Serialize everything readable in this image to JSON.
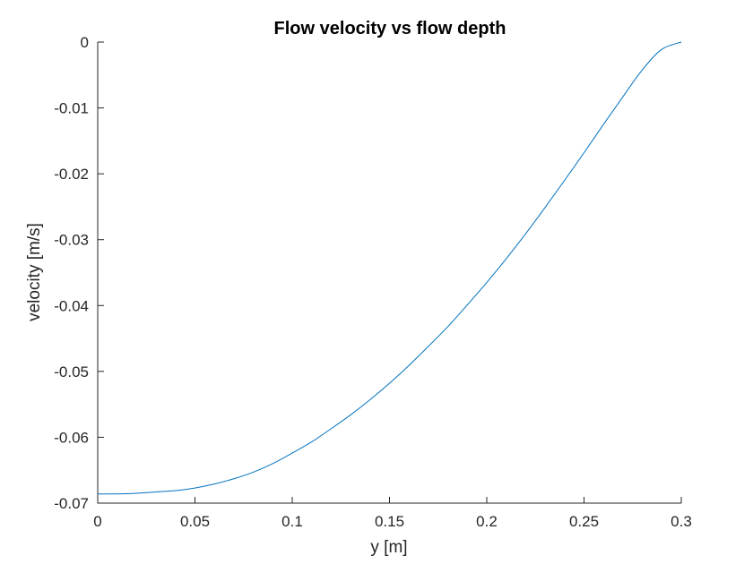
{
  "chart_data": {
    "type": "line",
    "title": "Flow velocity vs flow depth",
    "xlabel": "y [m]",
    "ylabel": "velocity [m/s]",
    "xlim": [
      0,
      0.3
    ],
    "ylim": [
      -0.07,
      0
    ],
    "xticks": [
      0,
      0.05,
      0.1,
      0.15,
      0.2,
      0.25,
      0.3
    ],
    "xtick_labels": [
      "0",
      "0.05",
      "0.1",
      "0.15",
      "0.2",
      "0.25",
      "0.3"
    ],
    "yticks": [
      -0.07,
      -0.06,
      -0.05,
      -0.04,
      -0.03,
      -0.02,
      -0.01,
      0
    ],
    "ytick_labels": [
      "-0.07",
      "-0.06",
      "-0.05",
      "-0.04",
      "-0.03",
      "-0.02",
      "-0.01",
      "0"
    ],
    "grid": false,
    "legend": "none",
    "series": [
      {
        "color": "#0072bd",
        "x": [
          0,
          0.01,
          0.02,
          0.03,
          0.04,
          0.05,
          0.06,
          0.07,
          0.08,
          0.09,
          0.1,
          0.11,
          0.12,
          0.13,
          0.14,
          0.15,
          0.16,
          0.17,
          0.18,
          0.19,
          0.2,
          0.21,
          0.22,
          0.23,
          0.24,
          0.25,
          0.26,
          0.27,
          0.28,
          0.29,
          0.3
        ],
        "y": [
          -0.0686,
          -0.0686,
          -0.0685,
          -0.0683,
          -0.0681,
          -0.0677,
          -0.0671,
          -0.0663,
          -0.0653,
          -0.064,
          -0.0624,
          -0.0607,
          -0.0587,
          -0.0566,
          -0.0543,
          -0.0518,
          -0.0491,
          -0.0462,
          -0.0432,
          -0.0399,
          -0.0365,
          -0.0329,
          -0.0291,
          -0.0251,
          -0.021,
          -0.0168,
          -0.0125,
          -0.0083,
          -0.0042,
          -0.0011,
          0
        ]
      }
    ]
  }
}
